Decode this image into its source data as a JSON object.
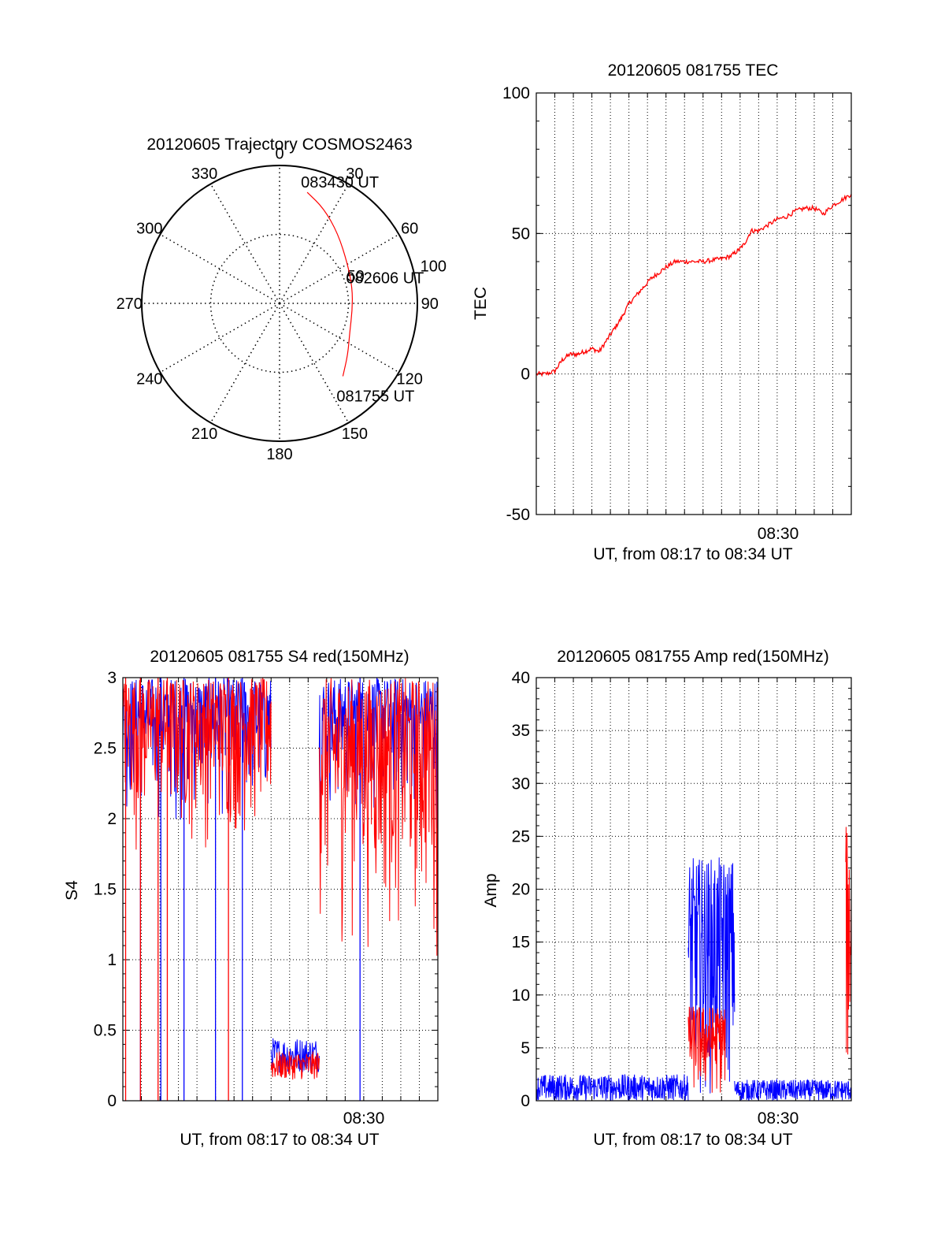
{
  "colors": {
    "red": "#ff0000",
    "blue": "#0000ff",
    "axis": "#000000",
    "grid": "#000000"
  },
  "chart_data": [
    {
      "id": "trajectory",
      "type": "polar",
      "title": "20120605 Trajectory COSMOS2463",
      "angle_labels": [
        "0",
        "30",
        "60",
        "90",
        "120",
        "150",
        "180",
        "210",
        "240",
        "270",
        "300",
        "330"
      ],
      "angle_values": [
        0,
        30,
        60,
        90,
        120,
        150,
        180,
        210,
        240,
        270,
        300,
        330
      ],
      "radial_labels": [
        "50",
        "100"
      ],
      "radial_values": [
        50,
        100
      ],
      "radial_max": 100,
      "trajectory": [
        {
          "az": 14,
          "r": 83
        },
        {
          "az": 25,
          "r": 76
        },
        {
          "az": 40,
          "r": 66
        },
        {
          "az": 60,
          "r": 57
        },
        {
          "az": 78,
          "r": 54
        },
        {
          "az": 95,
          "r": 53
        },
        {
          "az": 112,
          "r": 55
        },
        {
          "az": 127,
          "r": 62
        },
        {
          "az": 139,
          "r": 70
        }
      ],
      "annotations": [
        {
          "text": "083430 UT",
          "az": 14,
          "r": 83
        },
        {
          "text": "082606 UT",
          "az": 78,
          "r": 54
        },
        {
          "text": "081755 UT",
          "az": 139,
          "r": 70
        }
      ]
    },
    {
      "id": "tec",
      "type": "line",
      "title": "20120605 081755 TEC",
      "ylabel": "TEC",
      "xlabel": "UT, from 08:17 to 08:34 UT",
      "xlim": [
        0,
        17
      ],
      "ylim": [
        -50,
        100
      ],
      "yticks": [
        -50,
        0,
        50,
        100
      ],
      "xtick_label": "08:30",
      "xtick_pos": 13,
      "series": [
        {
          "x": [
            0.0,
            0.5,
            1.0,
            1.4,
            1.8,
            2.2,
            2.6,
            3.0,
            3.4,
            3.8,
            4.2,
            4.6,
            5.0,
            5.4,
            5.8,
            6.2,
            6.6,
            7.0,
            7.5,
            8.0,
            8.5,
            9.0,
            9.5,
            10.0,
            10.5,
            10.9,
            11.2,
            11.6,
            12.0,
            12.5,
            13.0,
            13.5,
            14.0,
            14.5,
            15.0,
            15.5,
            16.0,
            16.5,
            17.0
          ],
          "y": [
            0,
            0,
            1,
            5,
            7,
            7,
            8,
            9,
            8,
            12,
            16,
            20,
            25,
            28,
            31,
            34,
            36,
            38,
            40,
            40,
            40,
            40,
            40.5,
            41,
            42,
            44,
            46,
            51,
            51,
            53,
            55,
            56,
            58,
            59,
            59,
            57,
            60,
            62,
            64
          ]
        }
      ]
    },
    {
      "id": "s4",
      "type": "line",
      "title": "20120605 081755 S4 red(150MHz)",
      "ylabel": "S4",
      "xlabel": "UT, from 08:17 to 08:34 UT",
      "xlim": [
        0,
        17
      ],
      "ylim": [
        0,
        3
      ],
      "yticks": [
        0,
        0.5,
        1,
        1.5,
        2,
        2.5,
        3
      ],
      "ytick_labels": [
        "0",
        "0.5",
        "1",
        "1.5",
        "2",
        "2.5",
        "3"
      ],
      "xtick_label": "08:30",
      "xtick_pos": 13,
      "series": [
        {
          "color": "blue",
          "segments": [
            {
              "x0": 0.0,
              "x1": 8.0,
              "ymin": 1.8,
              "ymax": 3.0
            },
            {
              "x0": 8.0,
              "x1": 10.6,
              "ymin": 0.2,
              "ymax": 0.45
            },
            {
              "x0": 10.6,
              "x1": 17.0,
              "ymin": 1.8,
              "ymax": 3.0
            }
          ],
          "drops": [
            0.95,
            2.05,
            3.3,
            5.0,
            6.45,
            12.8
          ]
        },
        {
          "color": "red",
          "segments": [
            {
              "x0": 0.0,
              "x1": 8.0,
              "ymin": 1.6,
              "ymax": 3.0
            },
            {
              "x0": 8.0,
              "x1": 10.6,
              "ymin": 0.15,
              "ymax": 0.35
            },
            {
              "x0": 10.6,
              "x1": 17.0,
              "ymin": 0.8,
              "ymax": 3.0
            }
          ],
          "drops": [
            0.15,
            0.95,
            1.9,
            2.4,
            5.7
          ]
        }
      ]
    },
    {
      "id": "amp",
      "type": "line",
      "title": "20120605 081755 Amp red(150MHz)",
      "ylabel": "Amp",
      "xlabel": "UT, from 08:17 to 08:34 UT",
      "xlim": [
        0,
        17
      ],
      "ylim": [
        0,
        40
      ],
      "yticks": [
        0,
        5,
        10,
        15,
        20,
        25,
        30,
        35,
        40
      ],
      "xtick_label": "08:30",
      "xtick_pos": 13,
      "series": [
        {
          "color": "blue",
          "segments": [
            {
              "x0": 0.0,
              "x1": 8.2,
              "ymin": 0,
              "ymax": 2.5
            },
            {
              "x0": 8.2,
              "x1": 10.7,
              "ymin": 0,
              "ymax": 23
            },
            {
              "x0": 10.7,
              "x1": 17.0,
              "ymin": 0,
              "ymax": 2.0
            }
          ]
        },
        {
          "color": "red",
          "segments": [
            {
              "x0": 8.2,
              "x1": 10.2,
              "ymin": 0,
              "ymax": 9
            },
            {
              "x0": 16.7,
              "x1": 17.0,
              "ymin": 0,
              "ymax": 26
            }
          ]
        }
      ]
    }
  ]
}
